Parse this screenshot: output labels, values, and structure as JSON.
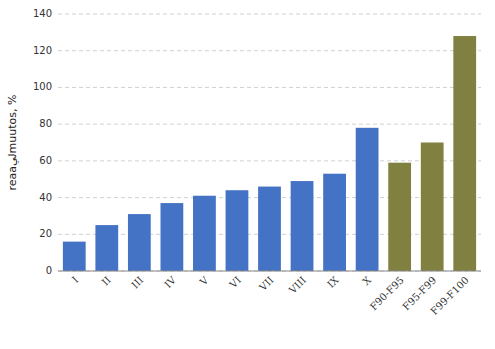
{
  "chart_data": {
    "type": "bar",
    "categories": [
      "I",
      "II",
      "III",
      "IV",
      "V",
      "VI",
      "VII",
      "VIII",
      "IX",
      "X",
      "F90-F95",
      "F95-F99",
      "F99-F100"
    ],
    "values": [
      16,
      25,
      31,
      37,
      41,
      44,
      46,
      49,
      53,
      78,
      59,
      70,
      128
    ],
    "colors": [
      "#4472c4",
      "#4472c4",
      "#4472c4",
      "#4472c4",
      "#4472c4",
      "#4472c4",
      "#4472c4",
      "#4472c4",
      "#4472c4",
      "#4472c4",
      "#808040",
      "#808040",
      "#808040"
    ],
    "ylabel": "reaaليmuutos, %",
    "ylim": [
      0,
      140
    ],
    "yticks": [
      0,
      20,
      40,
      60,
      80,
      100,
      120,
      140
    ],
    "grid": true
  }
}
